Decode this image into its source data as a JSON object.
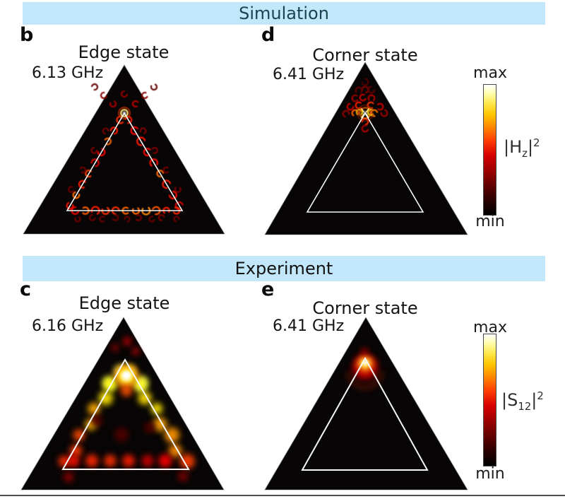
{
  "figure": {
    "sections": [
      {
        "label": "Simulation"
      },
      {
        "label": "Experiment"
      }
    ],
    "panels": [
      {
        "letter": "b",
        "title": "Edge state",
        "frequency": "6.13 GHz",
        "section": "Simulation",
        "state": "edge",
        "style": "discrete"
      },
      {
        "letter": "d",
        "title": "Corner state",
        "frequency": "6.41 GHz",
        "section": "Simulation",
        "state": "corner",
        "style": "discrete"
      },
      {
        "letter": "c",
        "title": "Edge state",
        "frequency": "6.16 GHz",
        "section": "Experiment",
        "state": "edge",
        "style": "smooth"
      },
      {
        "letter": "e",
        "title": "Corner state",
        "frequency": "6.41 GHz",
        "section": "Experiment",
        "state": "corner",
        "style": "smooth"
      }
    ],
    "colorbars": [
      {
        "max_label": "max",
        "min_label": "min",
        "colormap": "hot",
        "quantity": {
          "prefix": "|H",
          "subscript": "z",
          "bar": "|",
          "exponent": "2"
        }
      },
      {
        "max_label": "max",
        "min_label": "min",
        "colormap": "hot",
        "quantity": {
          "prefix": "|S",
          "subscript": "12",
          "bar": "|",
          "exponent": "2"
        }
      }
    ],
    "colors": {
      "banner_background": "#c2e7fa",
      "simulation_text": "#17444f",
      "experiment_text": "#121212",
      "heatmap_background": "#070505",
      "inner_outline": "#f8f8f8",
      "heat_min": "#000000",
      "heat_max": "#ffffff"
    }
  }
}
